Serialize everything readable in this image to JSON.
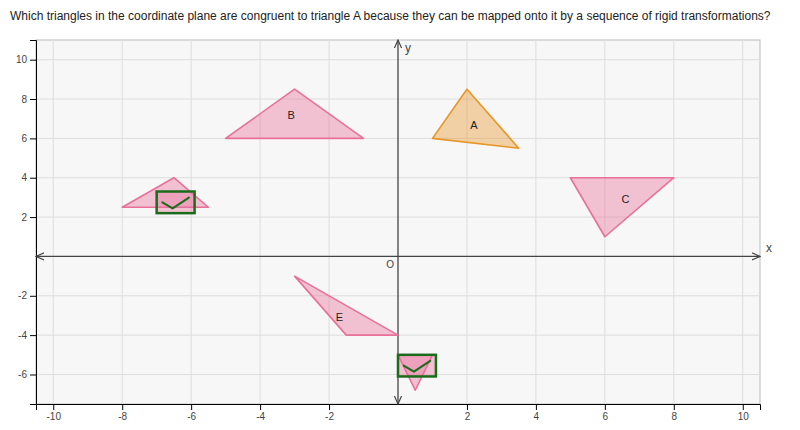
{
  "chart_data": {
    "type": "polygon",
    "title": "Which triangles in the coordinate plane are congruent to triangle A because they can be mapped onto it by a sequence of rigid transformations?",
    "x_label": "x",
    "y_label": "y",
    "origin_label": "O",
    "xlim": [
      -10.5,
      10.5
    ],
    "ylim": [
      -7.5,
      11.0
    ],
    "xticks": [
      -10,
      -8,
      -6,
      -4,
      -2,
      2,
      4,
      6,
      8,
      10
    ],
    "yticks": [
      -6,
      -4,
      -2,
      2,
      4,
      6,
      8,
      10
    ],
    "grid": true,
    "series": [
      {
        "label": "A",
        "color": "#e8952a",
        "x": [
          1,
          2,
          3.5
        ],
        "values": [
          6,
          8.5,
          5.5
        ],
        "label_x": 2.2,
        "label_y": 6.7
      },
      {
        "label": "B",
        "color": "#e8709a",
        "x": [
          -5,
          -3,
          -1
        ],
        "values": [
          6,
          8.5,
          6
        ],
        "label_x": -3.1,
        "label_y": 7.2
      },
      {
        "label": "C",
        "color": "#e8709a",
        "x": [
          5,
          8,
          6
        ],
        "values": [
          4,
          4,
          1
        ],
        "label_x": 6.6,
        "label_y": 2.9
      },
      {
        "color": "#e8709a",
        "x": [
          -8,
          -6.5,
          -5.5
        ],
        "values": [
          2.5,
          4,
          2.5
        ],
        "checkbox": {
          "x": -7.0,
          "y": 2.2,
          "w": 1.1,
          "h": 1.1,
          "color": "#1a6b1a"
        }
      },
      {
        "label": "E",
        "color": "#e8709a",
        "x": [
          -3,
          -1.5,
          0
        ],
        "values": [
          -1,
          -4,
          -4
        ],
        "label_x": -1.7,
        "label_y": -3.1
      },
      {
        "color": "#e8709a",
        "x": [
          0,
          1,
          0.5
        ],
        "values": [
          -5,
          -5,
          -6.8
        ],
        "checkbox": {
          "x": 0.0,
          "y": -6.1,
          "w": 1.1,
          "h": 1.1,
          "color": "#1a6b1a"
        }
      }
    ]
  }
}
